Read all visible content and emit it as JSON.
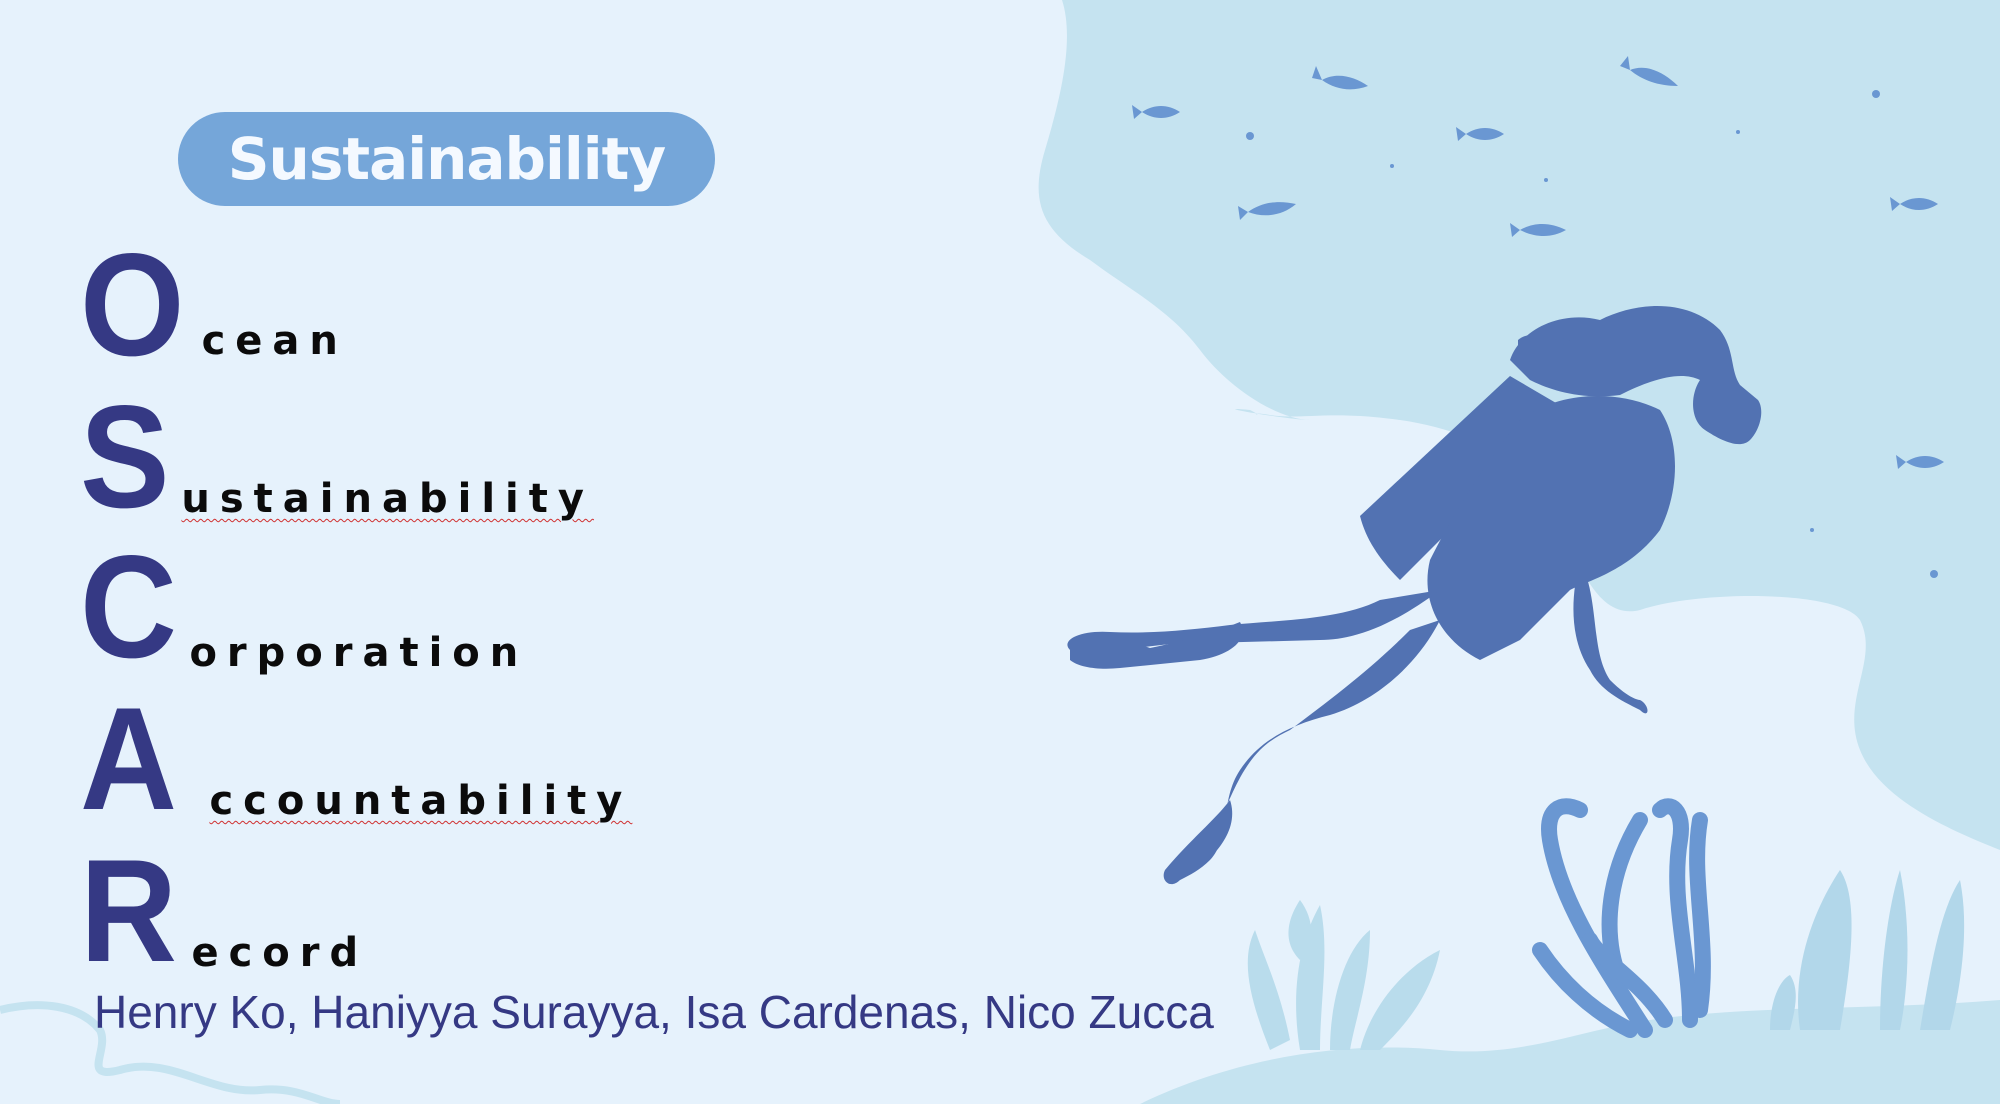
{
  "slide": {
    "badge": "Sustainability",
    "acronym": [
      {
        "letter": "O",
        "rest": "cean"
      },
      {
        "letter": "S",
        "rest": "ustainability"
      },
      {
        "letter": "C",
        "rest": "orporation"
      },
      {
        "letter": "A",
        "rest": "ccountability"
      },
      {
        "letter": "R",
        "rest": "ecord"
      }
    ],
    "authors": "Henry Ko, Haniyya Surayya, Isa Cardenas, Nico Zucca"
  },
  "colors": {
    "background": "#e6f2fc",
    "water_panel": "#c5e3f0",
    "badge": "#75a6d9",
    "acronym_letter": "#353984",
    "diver": "#5272b2",
    "fish": "#6a97d2"
  },
  "icons": [
    "diver-silhouette-icon",
    "fish-icon",
    "coral-icon",
    "seaweed-icon"
  ]
}
